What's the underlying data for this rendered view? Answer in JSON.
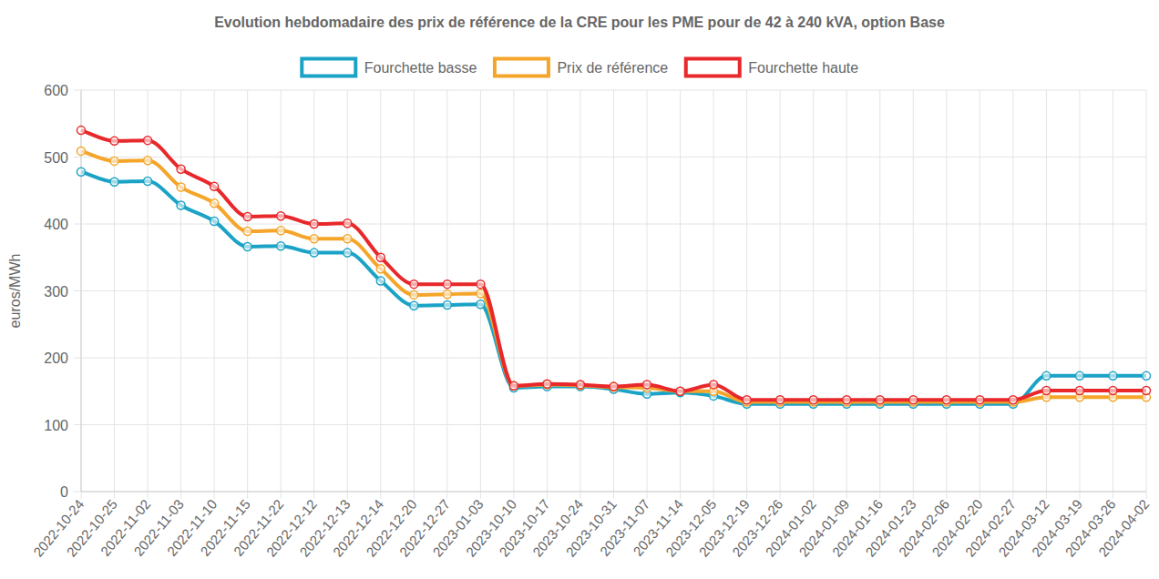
{
  "chart_data": {
    "type": "line",
    "title": "Evolution hebdomadaire des prix de référence de la CRE pour les PME pour de 42 à 240 kVA, option Base",
    "y_label": "euros/MWh",
    "categories": [
      "2022-10-24",
      "2022-10-25",
      "2022-11-02",
      "2022-11-03",
      "2022-11-10",
      "2022-11-15",
      "2022-11-22",
      "2022-12-12",
      "2022-12-13",
      "2022-12-14",
      "2022-12-20",
      "2022-12-27",
      "2023-01-03",
      "2023-10-10",
      "2023-10-17",
      "2023-10-24",
      "2023-10-31",
      "2023-11-07",
      "2023-11-14",
      "2023-12-05",
      "2023-12-19",
      "2023-12-26",
      "2024-01-02",
      "2024-01-09",
      "2024-01-16",
      "2024-01-23",
      "2024-02-06",
      "2024-02-20",
      "2024-02-27",
      "2024-03-12",
      "2024-03-19",
      "2024-03-26",
      "2024-04-02"
    ],
    "series": [
      {
        "name": "Fourchette basse",
        "color": "#1ba3c6",
        "marker": "circle",
        "values": [
          478,
          463,
          464,
          428,
          404,
          366,
          367,
          357,
          357,
          315,
          278,
          279,
          280,
          155,
          157,
          157,
          153,
          146,
          148,
          143,
          131,
          131,
          131,
          131,
          131,
          131,
          131,
          131,
          131,
          173,
          173,
          173,
          173
        ]
      },
      {
        "name": "Prix de référence",
        "color": "#f4a52a",
        "marker": "circle",
        "values": [
          509,
          494,
          495,
          455,
          431,
          389,
          390,
          378,
          378,
          333,
          294,
          295,
          296,
          158,
          160,
          159,
          156,
          155,
          150,
          150,
          134,
          134,
          134,
          134,
          134,
          134,
          134,
          134,
          134,
          141,
          141,
          141,
          141
        ]
      },
      {
        "name": "Fourchette haute",
        "color": "#e8282b",
        "marker": "circle",
        "values": [
          540,
          524,
          525,
          482,
          456,
          411,
          412,
          400,
          401,
          350,
          310,
          310,
          310,
          158,
          161,
          160,
          157,
          160,
          150,
          160,
          137,
          137,
          137,
          137,
          137,
          137,
          137,
          137,
          137,
          151,
          151,
          151,
          151
        ]
      }
    ],
    "ylim": [
      0,
      600
    ],
    "yticks": [
      0,
      100,
      200,
      300,
      400,
      500,
      600
    ],
    "grid": true,
    "legend": "top"
  }
}
